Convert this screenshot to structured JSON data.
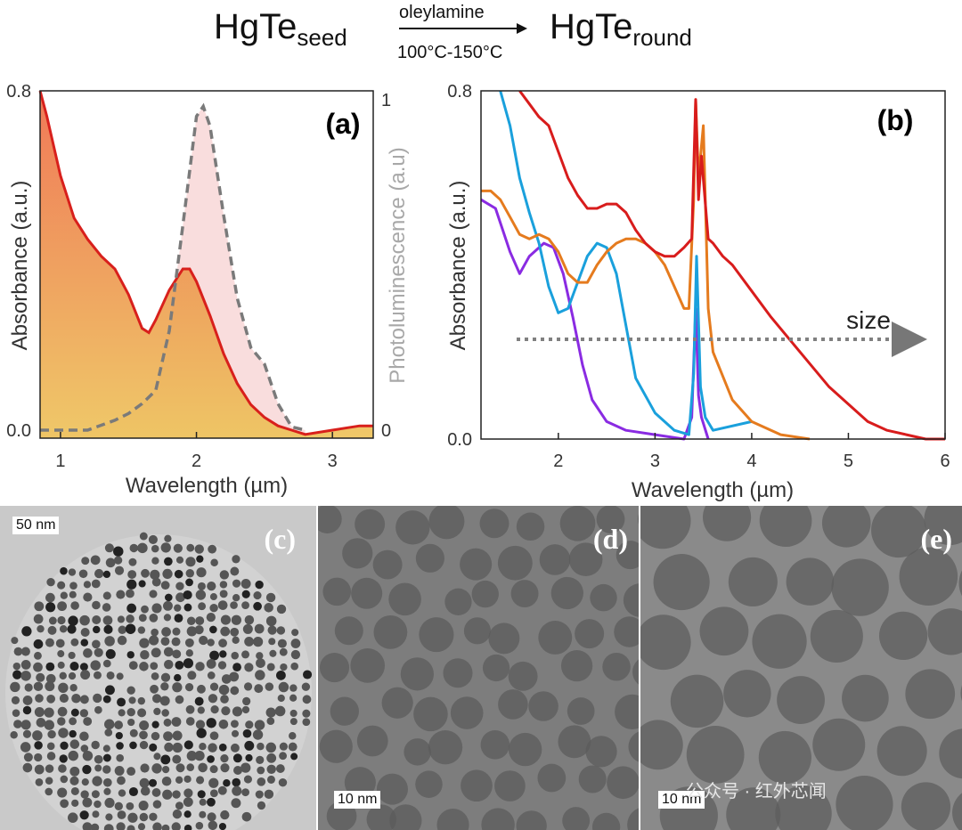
{
  "header": {
    "reactant": "HgTe",
    "reactant_sub": "seed",
    "reagent": "oleylamine",
    "conditions": "100°C-150°C",
    "product": "HgTe",
    "product_sub": "round"
  },
  "chart_data": [
    {
      "panel": "(a)",
      "type": "area",
      "xlabel": "Wavelength (µm)",
      "ylabel": "Absorbance (a.u.)",
      "y2label": "Photoluminescence (a.u)",
      "xlim": [
        0.85,
        3.3
      ],
      "ylim": [
        -0.02,
        0.8
      ],
      "y2lim": [
        0,
        1
      ],
      "xticks": [
        "1",
        "2",
        "3"
      ],
      "yticks": [
        "0.0",
        "0.8"
      ],
      "y2ticks": [
        "0",
        "1"
      ],
      "series": [
        {
          "axis": "left",
          "color": "#d8201c",
          "x": [
            0.85,
            0.9,
            1.0,
            1.1,
            1.2,
            1.3,
            1.4,
            1.5,
            1.6,
            1.65,
            1.7,
            1.8,
            1.9,
            1.95,
            2.0,
            2.1,
            2.2,
            2.3,
            2.4,
            2.5,
            2.6,
            2.7,
            2.8,
            3.0,
            3.2,
            3.3
          ],
          "y": [
            0.8,
            0.74,
            0.6,
            0.5,
            0.45,
            0.41,
            0.38,
            0.32,
            0.24,
            0.23,
            0.26,
            0.33,
            0.38,
            0.38,
            0.35,
            0.27,
            0.18,
            0.11,
            0.06,
            0.03,
            0.01,
            0.0,
            -0.01,
            0.0,
            0.01,
            0.01
          ]
        },
        {
          "axis": "right",
          "color": "#7a7a7a",
          "x": [
            0.85,
            1.0,
            1.2,
            1.4,
            1.5,
            1.6,
            1.7,
            1.8,
            1.9,
            2.0,
            2.05,
            2.1,
            2.2,
            2.3,
            2.4,
            2.5,
            2.6,
            2.7,
            2.8
          ],
          "y": [
            0,
            0,
            0,
            0.03,
            0.05,
            0.08,
            0.12,
            0.3,
            0.62,
            0.95,
            0.98,
            0.92,
            0.65,
            0.4,
            0.25,
            0.2,
            0.08,
            0.01,
            0
          ]
        }
      ]
    },
    {
      "panel": "(b)",
      "type": "line",
      "xlabel": "Wavelength (µm)",
      "ylabel": "Absorbance (a.u.)",
      "xlim": [
        1.2,
        6
      ],
      "ylim": [
        0,
        0.8
      ],
      "xticks": [
        "2",
        "3",
        "4",
        "5",
        "6"
      ],
      "yticks": [
        "0.0",
        "0.8"
      ],
      "annotation": "size",
      "series": [
        {
          "color": "#8a2be2",
          "x": [
            1.2,
            1.35,
            1.5,
            1.6,
            1.7,
            1.85,
            1.95,
            2.05,
            2.15,
            2.25,
            2.35,
            2.5,
            2.7,
            3.0,
            3.3,
            3.38,
            3.42,
            3.45,
            3.48,
            3.55
          ],
          "y": [
            0.55,
            0.53,
            0.43,
            0.38,
            0.42,
            0.45,
            0.44,
            0.38,
            0.28,
            0.17,
            0.09,
            0.04,
            0.02,
            0.01,
            0.0,
            0.05,
            0.3,
            0.1,
            0.05,
            0.0
          ]
        },
        {
          "color": "#1aa0dc",
          "x": [
            1.4,
            1.5,
            1.6,
            1.7,
            1.8,
            1.9,
            2.0,
            2.1,
            2.2,
            2.3,
            2.4,
            2.5,
            2.6,
            2.7,
            2.8,
            3.0,
            3.2,
            3.35,
            3.4,
            3.43,
            3.47,
            3.52,
            3.6,
            4.0
          ],
          "y": [
            0.8,
            0.72,
            0.6,
            0.52,
            0.45,
            0.35,
            0.29,
            0.3,
            0.36,
            0.42,
            0.45,
            0.44,
            0.38,
            0.26,
            0.14,
            0.06,
            0.02,
            0.01,
            0.15,
            0.42,
            0.12,
            0.05,
            0.02,
            0.04
          ]
        },
        {
          "color": "#e57b1e",
          "x": [
            1.2,
            1.3,
            1.4,
            1.5,
            1.6,
            1.7,
            1.8,
            1.9,
            2.0,
            2.1,
            2.2,
            2.3,
            2.4,
            2.5,
            2.6,
            2.7,
            2.8,
            2.9,
            3.0,
            3.1,
            3.2,
            3.3,
            3.35,
            3.4,
            3.42,
            3.45,
            3.5,
            3.55,
            3.6,
            3.8,
            4.0,
            4.3,
            4.6
          ],
          "y": [
            0.57,
            0.57,
            0.55,
            0.51,
            0.47,
            0.46,
            0.47,
            0.46,
            0.43,
            0.38,
            0.36,
            0.36,
            0.4,
            0.43,
            0.45,
            0.46,
            0.46,
            0.45,
            0.43,
            0.4,
            0.35,
            0.3,
            0.3,
            0.55,
            0.78,
            0.6,
            0.72,
            0.3,
            0.2,
            0.09,
            0.04,
            0.01,
            0.0
          ]
        },
        {
          "color": "#d81c1c",
          "x": [
            1.6,
            1.7,
            1.8,
            1.9,
            2.0,
            2.1,
            2.2,
            2.3,
            2.4,
            2.5,
            2.6,
            2.7,
            2.8,
            2.9,
            3.0,
            3.1,
            3.2,
            3.3,
            3.38,
            3.42,
            3.45,
            3.48,
            3.55,
            3.6,
            3.7,
            3.8,
            4.0,
            4.2,
            4.5,
            4.8,
            5.0,
            5.2,
            5.4,
            5.6,
            5.8,
            6.0
          ],
          "y": [
            0.8,
            0.77,
            0.74,
            0.72,
            0.66,
            0.6,
            0.56,
            0.53,
            0.53,
            0.54,
            0.54,
            0.52,
            0.48,
            0.45,
            0.43,
            0.42,
            0.42,
            0.44,
            0.46,
            0.78,
            0.55,
            0.65,
            0.46,
            0.45,
            0.42,
            0.4,
            0.34,
            0.28,
            0.2,
            0.12,
            0.08,
            0.04,
            0.02,
            0.01,
            0.0,
            0.0
          ]
        }
      ]
    }
  ],
  "tem": [
    {
      "label": "(c)",
      "scale": "50 nm"
    },
    {
      "label": "(d)",
      "scale": "10 nm"
    },
    {
      "label": "(e)",
      "scale": "10 nm"
    }
  ],
  "watermark": "公众号 · 红外芯闻"
}
